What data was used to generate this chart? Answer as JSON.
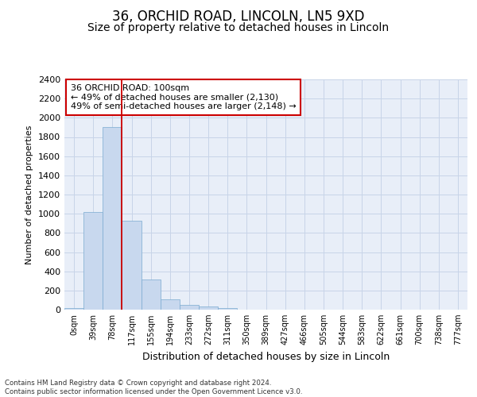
{
  "title1": "36, ORCHID ROAD, LINCOLN, LN5 9XD",
  "title2": "Size of property relative to detached houses in Lincoln",
  "xlabel": "Distribution of detached houses by size in Lincoln",
  "ylabel": "Number of detached properties",
  "bar_labels": [
    "0sqm",
    "39sqm",
    "78sqm",
    "117sqm",
    "155sqm",
    "194sqm",
    "233sqm",
    "272sqm",
    "311sqm",
    "350sqm",
    "389sqm",
    "427sqm",
    "466sqm",
    "505sqm",
    "544sqm",
    "583sqm",
    "622sqm",
    "661sqm",
    "700sqm",
    "738sqm",
    "777sqm"
  ],
  "bar_values": [
    20,
    1020,
    1900,
    930,
    315,
    110,
    50,
    30,
    20,
    0,
    0,
    0,
    0,
    0,
    0,
    0,
    0,
    0,
    0,
    0,
    0
  ],
  "bar_color": "#c8d8ee",
  "bar_edge_color": "#7aaad0",
  "ylim": [
    0,
    2400
  ],
  "yticks": [
    0,
    200,
    400,
    600,
    800,
    1000,
    1200,
    1400,
    1600,
    1800,
    2000,
    2200,
    2400
  ],
  "annotation_text": "36 ORCHID ROAD: 100sqm\n← 49% of detached houses are smaller (2,130)\n49% of semi-detached houses are larger (2,148) →",
  "vline_x": 2.5,
  "property_line_color": "#cc0000",
  "grid_color": "#c8d4e8",
  "background_color": "#e8eef8",
  "footer_text": "Contains HM Land Registry data © Crown copyright and database right 2024.\nContains public sector information licensed under the Open Government Licence v3.0.",
  "title1_fontsize": 12,
  "title2_fontsize": 10,
  "ylabel_fontsize": 8,
  "xlabel_fontsize": 9
}
